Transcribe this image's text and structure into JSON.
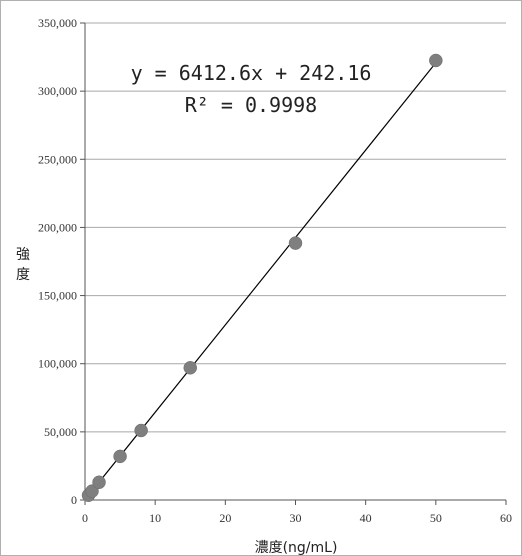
{
  "chart_data": {
    "type": "scatter",
    "title": "",
    "xlabel": "濃度(ng/mL)",
    "ylabel": "強度",
    "xlim": [
      0,
      60
    ],
    "ylim": [
      0,
      350000
    ],
    "x_ticks": [
      "0",
      "10",
      "20",
      "30",
      "40",
      "50",
      "60"
    ],
    "y_ticks": [
      "0",
      "50,000",
      "100,000",
      "150,000",
      "200,000",
      "250,000",
      "300,000",
      "350,000"
    ],
    "grid": "horizontal",
    "series": [
      {
        "points": [
          {
            "x": 0.5,
            "y": 3500
          },
          {
            "x": 1,
            "y": 6500
          },
          {
            "x": 2,
            "y": 13000
          },
          {
            "x": 5,
            "y": 32000
          },
          {
            "x": 8,
            "y": 51000
          },
          {
            "x": 15,
            "y": 97000
          },
          {
            "x": 30,
            "y": 188500
          },
          {
            "x": 50,
            "y": 322500
          }
        ],
        "color": "#7f7f7f"
      }
    ],
    "trendline": {
      "slope": 6412.6,
      "intercept": 242.16,
      "equation": "y = 6412.6x + 242.16",
      "r2_label": "R² = 0.9998"
    }
  }
}
